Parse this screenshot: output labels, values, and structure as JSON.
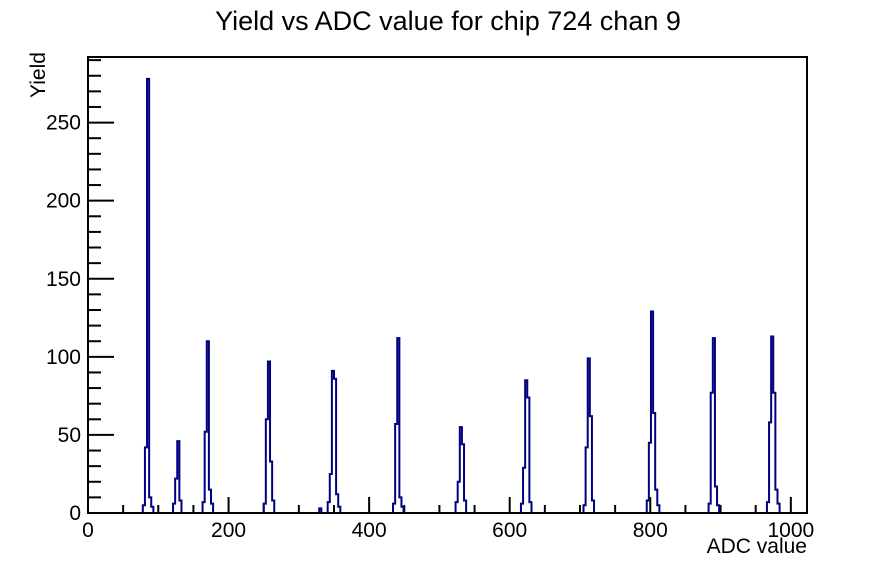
{
  "chart_data": {
    "type": "bar",
    "subtype": "root-histogram-line",
    "title": "Yield vs ADC value for chip 724 chan 9",
    "xlabel": "ADC value",
    "ylabel": "Yield",
    "xlim": [
      0,
      1023
    ],
    "ylim": [
      0,
      292
    ],
    "x_major_ticks": [
      0,
      200,
      400,
      600,
      800,
      1000
    ],
    "x_minor_step": 50,
    "y_major_ticks": [
      0,
      50,
      100,
      150,
      200,
      250
    ],
    "y_minor_step": 10,
    "grid": false,
    "legend": false,
    "line_color": "#000080",
    "axis_color": "#000000",
    "background_color": "#ffffff",
    "bin_width": 3,
    "clusters": [
      {
        "bins": [
          [
            78,
            5
          ],
          [
            81,
            42
          ],
          [
            84,
            278
          ],
          [
            87,
            10
          ],
          [
            90,
            4
          ]
        ]
      },
      {
        "bins": [
          [
            121,
            6
          ],
          [
            124,
            22
          ],
          [
            127,
            46
          ],
          [
            130,
            8
          ]
        ]
      },
      {
        "bins": [
          [
            163,
            7
          ],
          [
            166,
            52
          ],
          [
            169,
            110
          ],
          [
            172,
            15
          ],
          [
            175,
            6
          ]
        ]
      },
      {
        "bins": [
          [
            250,
            6
          ],
          [
            253,
            60
          ],
          [
            256,
            97
          ],
          [
            259,
            33
          ],
          [
            262,
            8
          ]
        ]
      },
      {
        "bins": [
          [
            329,
            3
          ]
        ]
      },
      {
        "bins": [
          [
            341,
            7
          ],
          [
            344,
            25
          ],
          [
            347,
            91
          ],
          [
            350,
            86
          ],
          [
            353,
            12
          ],
          [
            356,
            4
          ]
        ]
      },
      {
        "bins": [
          [
            434,
            6
          ],
          [
            437,
            57
          ],
          [
            440,
            112
          ],
          [
            443,
            10
          ],
          [
            446,
            4
          ]
        ]
      },
      {
        "bins": [
          [
            523,
            7
          ],
          [
            526,
            20
          ],
          [
            529,
            55
          ],
          [
            532,
            44
          ],
          [
            535,
            8
          ]
        ]
      },
      {
        "bins": [
          [
            616,
            6
          ],
          [
            619,
            29
          ],
          [
            622,
            85
          ],
          [
            625,
            74
          ],
          [
            628,
            7
          ]
        ]
      },
      {
        "bins": [
          [
            705,
            5
          ],
          [
            708,
            42
          ],
          [
            711,
            99
          ],
          [
            714,
            62
          ],
          [
            717,
            8
          ]
        ]
      },
      {
        "bins": [
          [
            795,
            8
          ],
          [
            798,
            45
          ],
          [
            801,
            129
          ],
          [
            804,
            64
          ],
          [
            807,
            15
          ],
          [
            810,
            5
          ]
        ]
      },
      {
        "bins": [
          [
            883,
            6
          ],
          [
            886,
            77
          ],
          [
            889,
            112
          ],
          [
            892,
            17
          ],
          [
            895,
            5
          ]
        ]
      },
      {
        "bins": [
          [
            966,
            7
          ],
          [
            969,
            58
          ],
          [
            972,
            113
          ],
          [
            975,
            77
          ],
          [
            978,
            15
          ],
          [
            981,
            6
          ]
        ]
      }
    ]
  }
}
